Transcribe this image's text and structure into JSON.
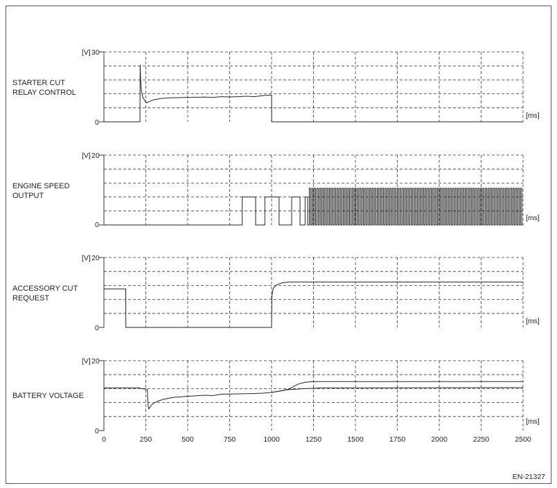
{
  "figure_id": "EN-21327",
  "chart_data": [
    {
      "type": "line",
      "title_lines": [
        "STARTER CUT",
        "RELAY CONTROL"
      ],
      "y_unit": "[V]",
      "y_max_label": "30",
      "y_min_label": "0",
      "x_unit": "[ms]",
      "xlim": [
        0,
        2500
      ],
      "ylim": [
        0,
        30
      ],
      "series": [
        {
          "points": [
            [
              0,
              0
            ],
            [
              215,
              0
            ],
            [
              216,
              24.5
            ],
            [
              219,
              18
            ],
            [
              224,
              13
            ],
            [
              232,
              10.5
            ],
            [
              245,
              9
            ],
            [
              255,
              8.2
            ],
            [
              265,
              8.5
            ],
            [
              280,
              9
            ],
            [
              300,
              9.5
            ],
            [
              340,
              10
            ],
            [
              400,
              10.3
            ],
            [
              500,
              10.5
            ],
            [
              600,
              10.6
            ],
            [
              650,
              10.5
            ],
            [
              700,
              10.8
            ],
            [
              750,
              10.7
            ],
            [
              800,
              10.8
            ],
            [
              850,
              11
            ],
            [
              900,
              10.8
            ],
            [
              950,
              11.3
            ],
            [
              1000,
              11.5
            ],
            [
              1001,
              0
            ],
            [
              2500,
              0
            ]
          ]
        }
      ]
    },
    {
      "type": "line",
      "title_lines": [
        "ENGINE SPEED",
        "OUTPUT"
      ],
      "y_unit": "[V]",
      "y_max_label": "20",
      "y_min_label": "0",
      "x_unit": "[ms]",
      "xlim": [
        0,
        2500
      ],
      "ylim": [
        0,
        20
      ],
      "pulses": [
        [
          825,
          905
        ],
        [
          960,
          1045
        ],
        [
          1120,
          1170
        ],
        [
          1200,
          1215
        ]
      ],
      "pulse_level": 8,
      "pulse_train": {
        "start": 1225,
        "end": 2500,
        "period": 15,
        "level": 10.5
      },
      "series": []
    },
    {
      "type": "line",
      "title_lines": [
        "ACCESSORY CUT",
        "REQUEST"
      ],
      "y_unit": "[V]",
      "y_max_label": "20",
      "y_min_label": "0",
      "x_unit": "[ms]",
      "xlim": [
        0,
        2500
      ],
      "ylim": [
        0,
        20
      ],
      "series": [
        {
          "points": [
            [
              0,
              11
            ],
            [
              130,
              11
            ],
            [
              131,
              0
            ],
            [
              1000,
              0
            ],
            [
              1002,
              9
            ],
            [
              1010,
              11.2
            ],
            [
              1030,
              12.2
            ],
            [
              1060,
              12.7
            ],
            [
              1100,
              13
            ],
            [
              2500,
              13
            ]
          ]
        }
      ]
    },
    {
      "type": "line",
      "title_lines": [
        "BATTERY VOLTAGE"
      ],
      "y_unit": "[V]",
      "y_max_label": "20",
      "y_min_label": "0",
      "x_unit": "[ms]",
      "xlim": [
        0,
        2500
      ],
      "ylim": [
        0,
        20
      ],
      "x_ticks": [
        0,
        250,
        500,
        750,
        1000,
        1250,
        1500,
        1750,
        2000,
        2250,
        2500
      ],
      "series": [
        {
          "points": [
            [
              0,
              12.2
            ],
            [
              210,
              12.2
            ],
            [
              222,
              12
            ],
            [
              258,
              11.8
            ],
            [
              264,
              7
            ],
            [
              268,
              6.2
            ],
            [
              275,
              6.8
            ],
            [
              290,
              7.6
            ],
            [
              320,
              8.4
            ],
            [
              360,
              9
            ],
            [
              420,
              9.5
            ],
            [
              500,
              9.8
            ],
            [
              600,
              10.1
            ],
            [
              650,
              10
            ],
            [
              700,
              10.4
            ],
            [
              800,
              10.5
            ],
            [
              900,
              10.6
            ],
            [
              950,
              10.7
            ],
            [
              1000,
              10.9
            ],
            [
              1050,
              11.3
            ],
            [
              1100,
              11.8
            ],
            [
              1130,
              12.6
            ],
            [
              1160,
              13.3
            ],
            [
              1200,
              13.8
            ],
            [
              1250,
              14
            ],
            [
              2500,
              14
            ]
          ]
        },
        {
          "points": [
            [
              1000,
              10.9
            ],
            [
              1100,
              11.7
            ],
            [
              1200,
              12
            ],
            [
              1300,
              12.2
            ],
            [
              2500,
              12.3
            ]
          ]
        }
      ]
    }
  ]
}
